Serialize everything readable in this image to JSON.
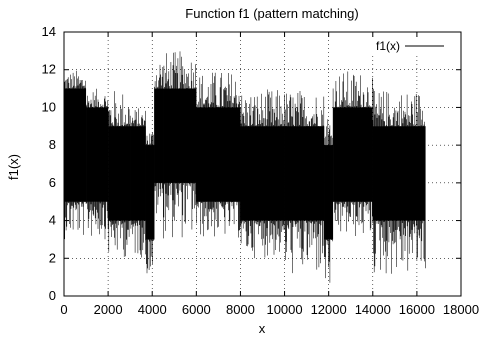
{
  "chart_data": {
    "type": "line",
    "title": "Function f1 (pattern matching)",
    "xlabel": "x",
    "ylabel": "f1(x)",
    "xlim": [
      0,
      18000
    ],
    "ylim": [
      0,
      14
    ],
    "xticks": [
      0,
      2000,
      4000,
      6000,
      8000,
      10000,
      12000,
      14000,
      16000,
      18000
    ],
    "yticks": [
      0,
      2,
      4,
      6,
      8,
      10,
      12,
      14
    ],
    "grid": true,
    "legend": "top-right",
    "series": [
      {
        "name": "f1(x)",
        "color": "#000000",
        "x_range": [
          0,
          16384
        ],
        "segments": [
          {
            "x_start": 0,
            "x_end": 1000,
            "min": 3,
            "max": 12,
            "band_low": 5,
            "band_high": 11
          },
          {
            "x_start": 1000,
            "x_end": 2000,
            "min": 3,
            "max": 11,
            "band_low": 5,
            "band_high": 10
          },
          {
            "x_start": 2000,
            "x_end": 3000,
            "min": 2,
            "max": 11,
            "band_low": 4,
            "band_high": 9
          },
          {
            "x_start": 3000,
            "x_end": 3700,
            "min": 2,
            "max": 10,
            "band_low": 4,
            "band_high": 9
          },
          {
            "x_start": 3700,
            "x_end": 4100,
            "min": 1,
            "max": 9,
            "band_low": 3,
            "band_high": 8
          },
          {
            "x_start": 4100,
            "x_end": 4500,
            "min": 4,
            "max": 13,
            "band_low": 6,
            "band_high": 11
          },
          {
            "x_start": 4500,
            "x_end": 6000,
            "min": 3,
            "max": 13,
            "band_low": 6,
            "band_high": 11
          },
          {
            "x_start": 6000,
            "x_end": 8000,
            "min": 3,
            "max": 12,
            "band_low": 5,
            "band_high": 10
          },
          {
            "x_start": 8000,
            "x_end": 10000,
            "min": 2,
            "max": 11,
            "band_low": 4,
            "band_high": 9
          },
          {
            "x_start": 10000,
            "x_end": 11800,
            "min": 1,
            "max": 11,
            "band_low": 4,
            "band_high": 9
          },
          {
            "x_start": 11800,
            "x_end": 12200,
            "min": 0,
            "max": 10,
            "band_low": 3,
            "band_high": 8
          },
          {
            "x_start": 12200,
            "x_end": 14000,
            "min": 3,
            "max": 12,
            "band_low": 5,
            "band_high": 10
          },
          {
            "x_start": 14000,
            "x_end": 16384,
            "min": 1,
            "max": 11,
            "band_low": 4,
            "band_high": 9
          }
        ]
      }
    ]
  }
}
